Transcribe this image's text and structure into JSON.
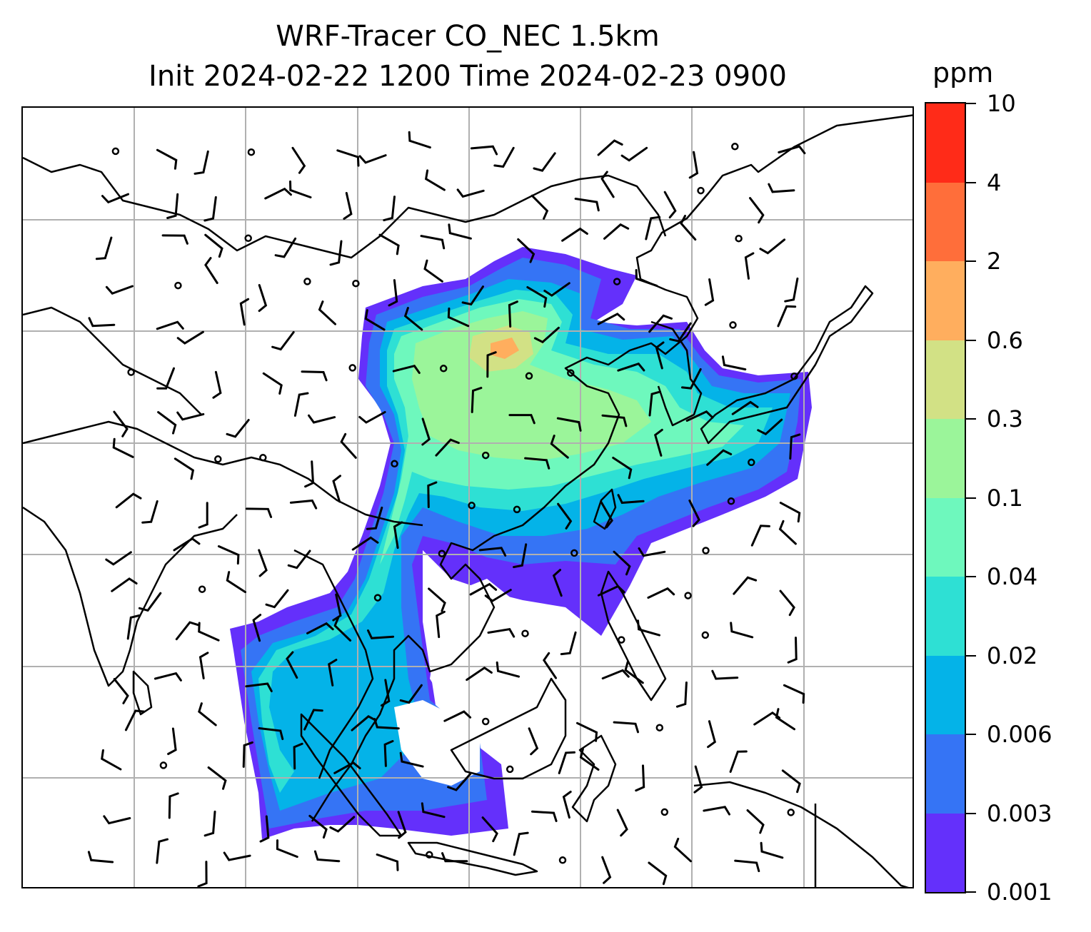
{
  "title": {
    "line1": "WRF-Tracer CO_NEC 1.5km",
    "line2": "Init 2024-02-22 1200 Time 2024-02-23 0900"
  },
  "colorbar": {
    "unit": "ppm",
    "labels": [
      "10",
      "4",
      "2",
      "0.6",
      "0.3",
      "0.1",
      "0.04",
      "0.02",
      "0.006",
      "0.003",
      "0.001"
    ],
    "colors": [
      "#ff2b18",
      "#ff6e3a",
      "#ffae5e",
      "#d2e185",
      "#9bf59a",
      "#6ef8bd",
      "#2ee0d4",
      "#04b3e8",
      "#3574f5",
      "#6430fb"
    ]
  },
  "map": {
    "gridlines": true,
    "grid_color": "#b0b0b0",
    "coastline_color": "#000000",
    "field": "CO_NEC tracer concentration",
    "overlay": "wind barbs"
  }
}
